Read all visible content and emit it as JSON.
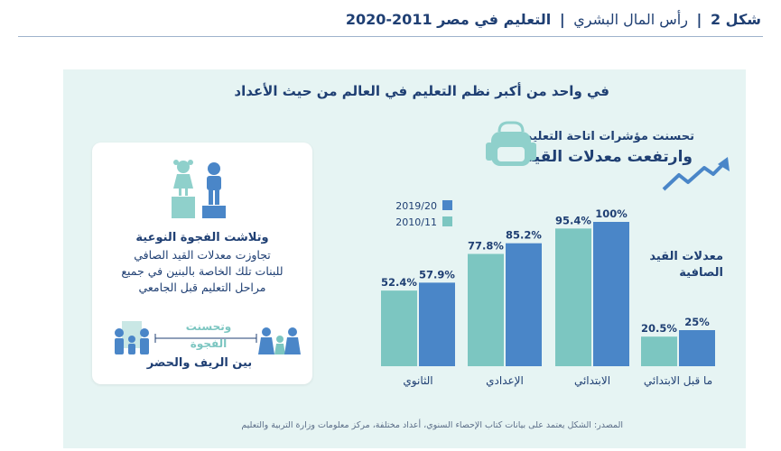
{
  "figure": {
    "number_label": "شكل 2",
    "section": "رأس المال البشري",
    "title": "التعليم في مصر 2011-2020"
  },
  "panel": {
    "heading": "في واحد من أكبر نظم التعليم في العالم من حيث الأعداد",
    "callout_line1": "تحسنت مؤشرات اتاحة التعليم",
    "callout_line2": "وارتفعت معدلات القيد"
  },
  "gender_card": {
    "heading": "وتلاشت الفجوة النوعية",
    "lines": [
      "تجاوزت معدلات القيد الصافي",
      "للبنات تلك الخاصة بالبنين في جميع",
      "مراحل التعليم قبل الجامعي"
    ],
    "improved_line1": "وتحسنت",
    "improved_line2": "الفجوة",
    "improved_line3": "بين الريف والحضر"
  },
  "colors": {
    "series_2011": "#7cc6c1",
    "series_2020": "#4a86c8",
    "dark_blue": "#1f3f73"
  },
  "chart_data": {
    "type": "bar",
    "title": "",
    "ylabel_line1": "معدلات القيد",
    "ylabel_line2": "الصافية",
    "categories": [
      "ما قبل الابتدائي",
      "الابتدائي",
      "الإعدادي",
      "الثانوي"
    ],
    "series": [
      {
        "name": "2010/11",
        "values": [
          20.5,
          95.4,
          77.8,
          52.4
        ],
        "labels": [
          "20.5%",
          "95.4%",
          "77.8%",
          "52.4%"
        ]
      },
      {
        "name": "2019/20",
        "values": [
          25,
          100,
          85.2,
          57.9
        ],
        "labels": [
          "25%",
          "100%",
          "85.2%",
          "57.9%"
        ]
      }
    ],
    "ylim": [
      0,
      100
    ],
    "legend": [
      "2019/20",
      "2010/11"
    ],
    "legend_position": "top-left"
  },
  "source": "المصدر: الشكل يعتمد على بيانات كتاب الإحصاء السنوي، أعداد مختلفة، مركز معلومات وزارة التربية والتعليم"
}
